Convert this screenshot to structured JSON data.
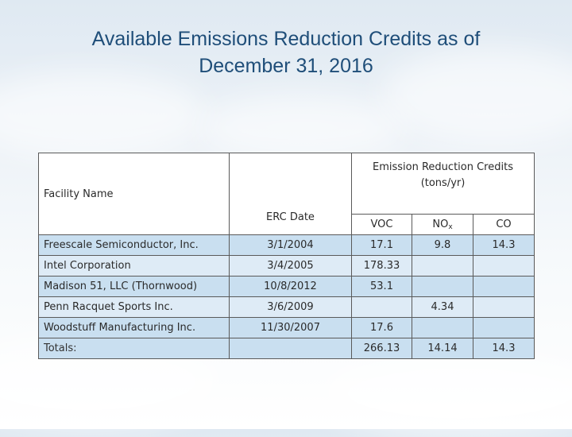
{
  "title": {
    "line1": "Available Emissions Reduction Credits as of",
    "line2": "December 31, 2016"
  },
  "table": {
    "headers": {
      "facility": "Facility Name",
      "erc_date": "ERC Date",
      "erc_group": "Emission Reduction Credits (tons/yr)",
      "voc": "VOC",
      "nox_main": "NO",
      "nox_sub": "x",
      "co": "CO"
    },
    "rows": [
      {
        "facility": "Freescale Semiconductor, Inc.",
        "date": "3/1/2004",
        "voc": "17.1",
        "nox": "9.8",
        "co": "14.3"
      },
      {
        "facility": "Intel Corporation",
        "date": "3/4/2005",
        "voc": "178.33",
        "nox": "",
        "co": ""
      },
      {
        "facility": "Madison 51, LLC (Thornwood)",
        "date": "10/8/2012",
        "voc": "53.1",
        "nox": "",
        "co": ""
      },
      {
        "facility": "Penn Racquet Sports Inc.",
        "date": "3/6/2009",
        "voc": "",
        "nox": "4.34",
        "co": ""
      },
      {
        "facility": "Woodstuff Manufacturing Inc.",
        "date": "11/30/2007",
        "voc": "17.6",
        "nox": "",
        "co": ""
      }
    ],
    "totals": {
      "label": "Totals:",
      "date": "",
      "voc": "266.13",
      "nox": "14.14",
      "co": "14.3"
    }
  }
}
